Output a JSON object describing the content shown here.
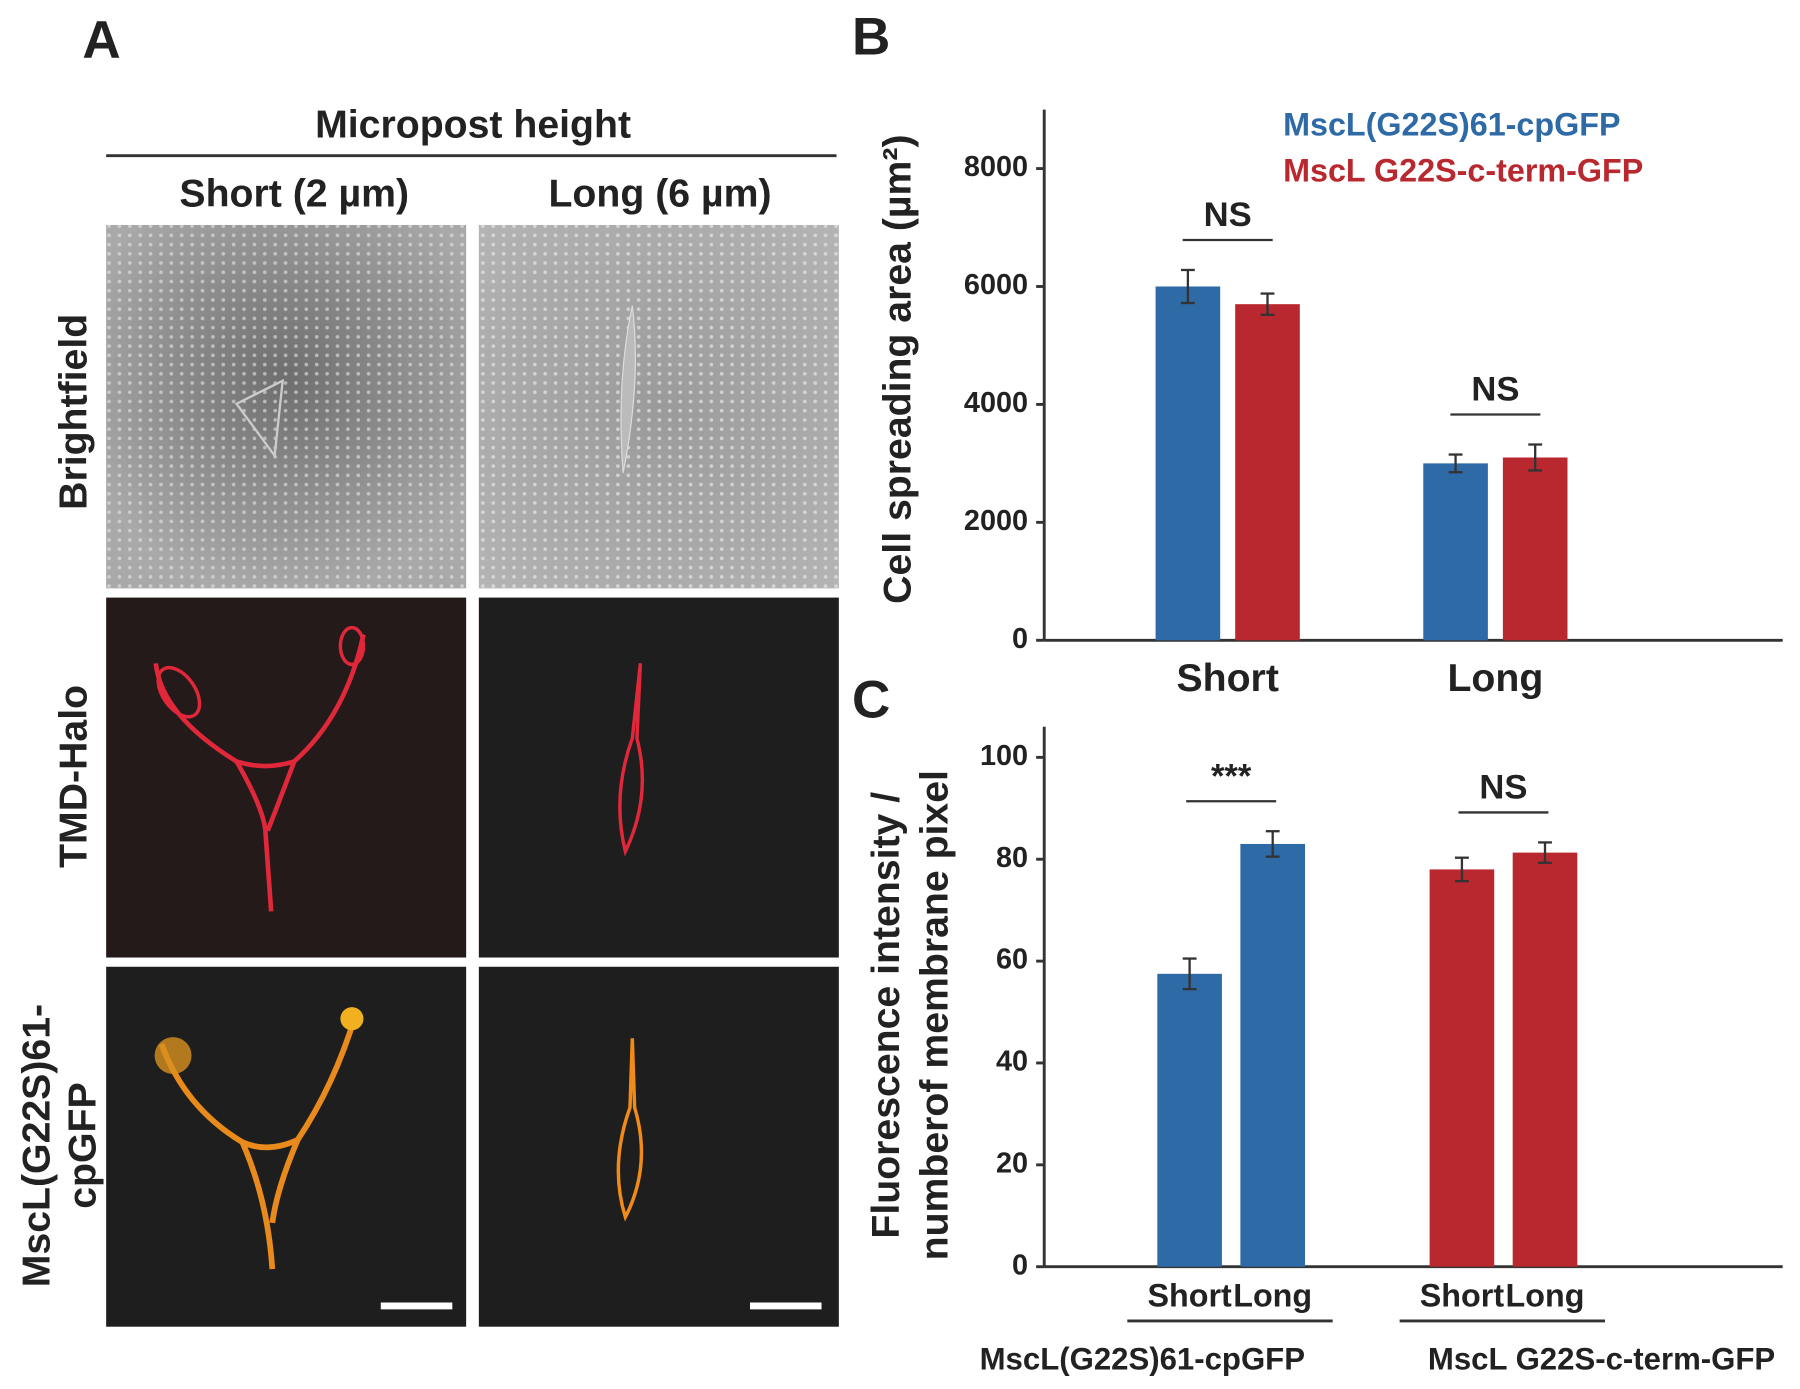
{
  "panel_a": {
    "label": "A",
    "header": "Micropost height",
    "columns": [
      "Short (2 µm)",
      "Long (6 µm)"
    ],
    "rows": [
      "Brightfield",
      "TMD-Halo",
      [
        "MscL(G22S)61-",
        "cpGFP"
      ]
    ]
  },
  "chart_data": [
    {
      "type": "bar",
      "panel_label": "B",
      "ylabel": "Cell spreading area (µm²)",
      "categories": [
        "Short",
        "Long"
      ],
      "series": [
        {
          "name": "MscL(G22S)61-cpGFP",
          "color": "#2e6aa6",
          "values": [
            6000,
            3000
          ],
          "errors": [
            280,
            150
          ]
        },
        {
          "name": "MscL G22S-c-term-GFP",
          "color": "#b9282e",
          "values": [
            5700,
            3100
          ],
          "errors": [
            180,
            220
          ]
        }
      ],
      "ylim": [
        0,
        9000
      ],
      "yticks": [
        0,
        2000,
        4000,
        6000,
        8000
      ],
      "legend": "upper right",
      "annotations": [
        "NS",
        "NS"
      ]
    },
    {
      "type": "grouped_bar",
      "panel_label": "C",
      "ylabel": [
        "Fluorescence intensity /",
        "numberof membrane pixel"
      ],
      "categories": [
        "Short",
        "Long",
        "Short",
        "Long"
      ],
      "series": [
        {
          "name": "MscL(G22S)61-cpGFP",
          "color": "#2e6aa6",
          "values": [
            57.5,
            83,
            null,
            null
          ],
          "errors": [
            3,
            2.5,
            null,
            null
          ]
        },
        {
          "name": "MscL G22S-c-term-GFP",
          "color": "#b9282e",
          "values": [
            null,
            null,
            78,
            81.3
          ],
          "errors": [
            null,
            null,
            2.3,
            2
          ]
        }
      ],
      "ylim": [
        0,
        106
      ],
      "yticks": [
        0,
        20,
        40,
        60,
        80,
        100
      ],
      "annotations": [
        "***",
        "NS"
      ]
    }
  ]
}
